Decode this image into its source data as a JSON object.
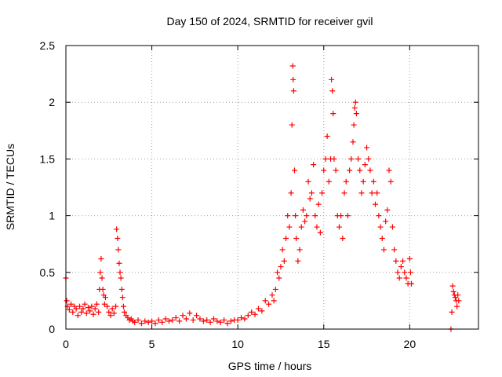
{
  "chart_data": {
    "type": "scatter",
    "title": "Day 150 of 2024, SRMTID for receiver gvil",
    "xlabel": "GPS time / hours",
    "ylabel": "SRMTID / TECUs",
    "xlim": [
      0,
      24
    ],
    "ylim": [
      0,
      2.5
    ],
    "x_ticks": [
      0,
      5,
      10,
      15,
      20
    ],
    "x_tick_labels": [
      "0",
      "5",
      "10",
      "15",
      "20"
    ],
    "y_ticks": [
      0,
      0.5,
      1,
      1.5,
      2,
      2.5
    ],
    "y_tick_labels": [
      "0",
      "0.5",
      "1",
      "1.5",
      "2",
      "2.5"
    ],
    "grid": true,
    "marker": "+",
    "series": [
      {
        "name": "SRMTID",
        "color": "#ff0000",
        "points": [
          [
            0.0,
            0.45
          ],
          [
            0.05,
            0.25
          ],
          [
            0.1,
            0.2
          ],
          [
            0.2,
            0.17
          ],
          [
            0.3,
            0.22
          ],
          [
            0.4,
            0.15
          ],
          [
            0.5,
            0.2
          ],
          [
            0.6,
            0.18
          ],
          [
            0.7,
            0.12
          ],
          [
            0.8,
            0.2
          ],
          [
            0.9,
            0.15
          ],
          [
            1.0,
            0.18
          ],
          [
            1.1,
            0.22
          ],
          [
            1.2,
            0.14
          ],
          [
            1.3,
            0.19
          ],
          [
            1.4,
            0.16
          ],
          [
            1.5,
            0.2
          ],
          [
            1.6,
            0.13
          ],
          [
            1.7,
            0.18
          ],
          [
            1.8,
            0.22
          ],
          [
            1.9,
            0.15
          ],
          [
            1.95,
            0.35
          ],
          [
            2.0,
            0.5
          ],
          [
            2.05,
            0.62
          ],
          [
            2.1,
            0.45
          ],
          [
            2.15,
            0.35
          ],
          [
            2.2,
            0.3
          ],
          [
            2.25,
            0.22
          ],
          [
            2.3,
            0.28
          ],
          [
            2.4,
            0.2
          ],
          [
            2.5,
            0.15
          ],
          [
            2.6,
            0.12
          ],
          [
            2.7,
            0.18
          ],
          [
            2.8,
            0.14
          ],
          [
            2.9,
            0.2
          ],
          [
            2.95,
            0.88
          ],
          [
            3.0,
            0.8
          ],
          [
            3.05,
            0.7
          ],
          [
            3.1,
            0.58
          ],
          [
            3.15,
            0.5
          ],
          [
            3.2,
            0.45
          ],
          [
            3.25,
            0.35
          ],
          [
            3.3,
            0.28
          ],
          [
            3.35,
            0.2
          ],
          [
            3.4,
            0.15
          ],
          [
            3.5,
            0.12
          ],
          [
            3.6,
            0.1
          ],
          [
            3.7,
            0.08
          ],
          [
            3.8,
            0.09
          ],
          [
            3.9,
            0.07
          ],
          [
            4.0,
            0.06
          ],
          [
            4.2,
            0.08
          ],
          [
            4.4,
            0.05
          ],
          [
            4.6,
            0.07
          ],
          [
            4.8,
            0.06
          ],
          [
            5.0,
            0.07
          ],
          [
            5.2,
            0.05
          ],
          [
            5.4,
            0.08
          ],
          [
            5.6,
            0.06
          ],
          [
            5.8,
            0.09
          ],
          [
            6.0,
            0.07
          ],
          [
            6.2,
            0.08
          ],
          [
            6.4,
            0.1
          ],
          [
            6.6,
            0.07
          ],
          [
            6.8,
            0.12
          ],
          [
            7.0,
            0.09
          ],
          [
            7.2,
            0.14
          ],
          [
            7.4,
            0.08
          ],
          [
            7.6,
            0.12
          ],
          [
            7.8,
            0.09
          ],
          [
            8.0,
            0.07
          ],
          [
            8.2,
            0.08
          ],
          [
            8.4,
            0.06
          ],
          [
            8.6,
            0.09
          ],
          [
            8.8,
            0.07
          ],
          [
            9.0,
            0.06
          ],
          [
            9.2,
            0.08
          ],
          [
            9.4,
            0.05
          ],
          [
            9.6,
            0.07
          ],
          [
            9.8,
            0.08
          ],
          [
            10.0,
            0.08
          ],
          [
            10.2,
            0.1
          ],
          [
            10.4,
            0.09
          ],
          [
            10.6,
            0.12
          ],
          [
            10.8,
            0.15
          ],
          [
            11.0,
            0.13
          ],
          [
            11.2,
            0.18
          ],
          [
            11.4,
            0.16
          ],
          [
            11.6,
            0.25
          ],
          [
            11.8,
            0.22
          ],
          [
            12.0,
            0.3
          ],
          [
            12.1,
            0.25
          ],
          [
            12.2,
            0.35
          ],
          [
            12.3,
            0.5
          ],
          [
            12.4,
            0.45
          ],
          [
            12.5,
            0.55
          ],
          [
            12.6,
            0.7
          ],
          [
            12.7,
            0.6
          ],
          [
            12.8,
            0.8
          ],
          [
            12.9,
            1.0
          ],
          [
            13.0,
            0.9
          ],
          [
            13.1,
            1.2
          ],
          [
            13.15,
            1.8
          ],
          [
            13.2,
            2.32
          ],
          [
            13.22,
            2.2
          ],
          [
            13.25,
            2.1
          ],
          [
            13.3,
            1.4
          ],
          [
            13.35,
            1.0
          ],
          [
            13.4,
            0.8
          ],
          [
            13.5,
            0.6
          ],
          [
            13.6,
            0.7
          ],
          [
            13.7,
            0.9
          ],
          [
            13.8,
            1.05
          ],
          [
            13.9,
            0.95
          ],
          [
            14.0,
            1.0
          ],
          [
            14.1,
            1.3
          ],
          [
            14.2,
            1.15
          ],
          [
            14.3,
            1.2
          ],
          [
            14.4,
            1.45
          ],
          [
            14.5,
            1.0
          ],
          [
            14.6,
            0.9
          ],
          [
            14.7,
            1.1
          ],
          [
            14.8,
            0.85
          ],
          [
            14.9,
            1.2
          ],
          [
            15.0,
            1.4
          ],
          [
            15.1,
            1.5
          ],
          [
            15.2,
            1.7
          ],
          [
            15.3,
            1.3
          ],
          [
            15.4,
            1.5
          ],
          [
            15.45,
            2.2
          ],
          [
            15.5,
            2.1
          ],
          [
            15.55,
            1.9
          ],
          [
            15.6,
            1.5
          ],
          [
            15.7,
            1.4
          ],
          [
            15.8,
            1.0
          ],
          [
            15.9,
            0.9
          ],
          [
            16.0,
            1.0
          ],
          [
            16.1,
            0.8
          ],
          [
            16.2,
            1.2
          ],
          [
            16.3,
            1.3
          ],
          [
            16.4,
            1.0
          ],
          [
            16.5,
            1.4
          ],
          [
            16.6,
            1.5
          ],
          [
            16.7,
            1.65
          ],
          [
            16.75,
            1.8
          ],
          [
            16.8,
            1.95
          ],
          [
            16.85,
            2.0
          ],
          [
            16.9,
            1.9
          ],
          [
            17.0,
            1.5
          ],
          [
            17.1,
            1.4
          ],
          [
            17.2,
            1.2
          ],
          [
            17.3,
            1.3
          ],
          [
            17.4,
            1.45
          ],
          [
            17.5,
            1.6
          ],
          [
            17.6,
            1.5
          ],
          [
            17.7,
            1.4
          ],
          [
            17.8,
            1.2
          ],
          [
            17.9,
            1.3
          ],
          [
            18.0,
            1.1
          ],
          [
            18.1,
            1.2
          ],
          [
            18.2,
            1.0
          ],
          [
            18.3,
            0.9
          ],
          [
            18.4,
            0.8
          ],
          [
            18.5,
            0.7
          ],
          [
            18.6,
            0.95
          ],
          [
            18.7,
            1.05
          ],
          [
            18.8,
            1.4
          ],
          [
            18.9,
            1.3
          ],
          [
            19.0,
            0.9
          ],
          [
            19.1,
            0.7
          ],
          [
            19.2,
            0.6
          ],
          [
            19.3,
            0.5
          ],
          [
            19.4,
            0.45
          ],
          [
            19.5,
            0.55
          ],
          [
            19.6,
            0.6
          ],
          [
            19.7,
            0.5
          ],
          [
            19.8,
            0.45
          ],
          [
            19.9,
            0.4
          ],
          [
            20.0,
            0.62
          ],
          [
            20.05,
            0.5
          ],
          [
            20.1,
            0.4
          ],
          [
            22.4,
            0.0
          ],
          [
            22.45,
            0.15
          ],
          [
            22.5,
            0.38
          ],
          [
            22.55,
            0.33
          ],
          [
            22.6,
            0.3
          ],
          [
            22.65,
            0.28
          ],
          [
            22.7,
            0.25
          ],
          [
            22.75,
            0.2
          ],
          [
            22.8,
            0.3
          ],
          [
            22.85,
            0.25
          ]
        ]
      }
    ]
  }
}
